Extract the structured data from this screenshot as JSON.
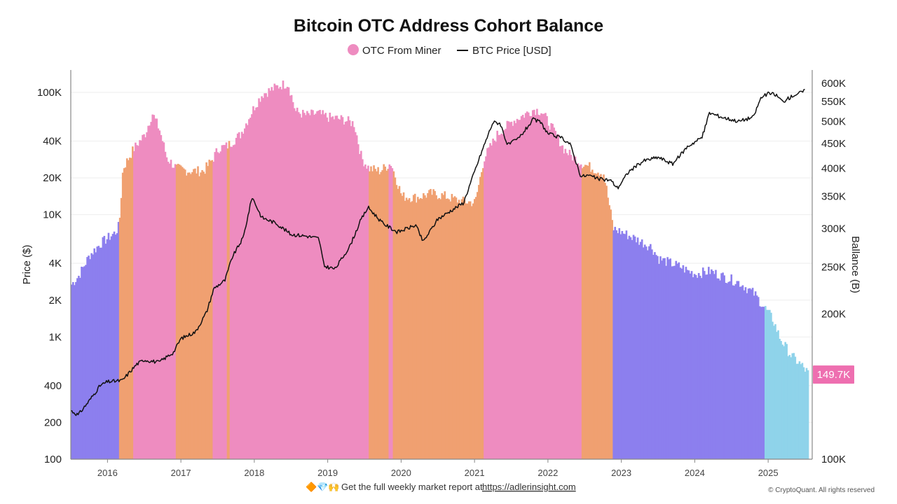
{
  "chart_data": {
    "type": "area",
    "title": "Bitcoin OTC Address Cohort Balance",
    "ylabel_left": "Price ($)",
    "ylabel_right": "Ballance (B)",
    "y_left_scale": "log",
    "y_left_range": [
      100,
      120000
    ],
    "y_left_ticks": [
      "100",
      "200",
      "400",
      "1K",
      "2K",
      "4K",
      "10K",
      "20K",
      "40K",
      "100K"
    ],
    "y_left_tick_values": [
      100,
      200,
      400,
      1000,
      2000,
      4000,
      10000,
      20000,
      40000,
      100000
    ],
    "y_right_scale": "log",
    "y_right_range": [
      100000,
      620000
    ],
    "y_right_ticks": [
      "100K",
      "200K",
      "250K",
      "300K",
      "350K",
      "400K",
      "450K",
      "500K",
      "550K",
      "600K"
    ],
    "y_right_tick_values": [
      100000,
      200000,
      250000,
      300000,
      350000,
      400000,
      450000,
      500000,
      550000,
      600000
    ],
    "x_range": [
      2015.5,
      2025.6
    ],
    "x_ticks": [
      "2016",
      "2017",
      "2018",
      "2019",
      "2020",
      "2021",
      "2022",
      "2023",
      "2024",
      "2025"
    ],
    "x_tick_values": [
      2016,
      2017,
      2018,
      2019,
      2020,
      2021,
      2022,
      2023,
      2024,
      2025
    ],
    "grid": "horizontal",
    "legend_position": "top-center",
    "legend": [
      {
        "label": "OTC From Miner",
        "marker": "circle",
        "color": "#ee8cc0"
      },
      {
        "label": "BTC Price [USD]",
        "marker": "line",
        "color": "#111111"
      }
    ],
    "balance_color_regimes": [
      {
        "from": 2015.5,
        "to": 2016.15,
        "color": "#8c7fee"
      },
      {
        "from": 2016.15,
        "to": 2016.35,
        "color": "#f0a071"
      },
      {
        "from": 2016.35,
        "to": 2016.93,
        "color": "#ee8cc0"
      },
      {
        "from": 2016.93,
        "to": 2017.43,
        "color": "#f0a071"
      },
      {
        "from": 2017.43,
        "to": 2017.62,
        "color": "#ee8cc0"
      },
      {
        "from": 2017.62,
        "to": 2017.66,
        "color": "#f0a071"
      },
      {
        "from": 2017.66,
        "to": 2019.55,
        "color": "#ee8cc0"
      },
      {
        "from": 2019.55,
        "to": 2019.82,
        "color": "#f0a071"
      },
      {
        "from": 2019.82,
        "to": 2019.88,
        "color": "#ee8cc0"
      },
      {
        "from": 2019.88,
        "to": 2021.12,
        "color": "#f0a071"
      },
      {
        "from": 2021.12,
        "to": 2022.45,
        "color": "#ee8cc0"
      },
      {
        "from": 2022.45,
        "to": 2022.88,
        "color": "#f0a071"
      },
      {
        "from": 2022.88,
        "to": 2024.95,
        "color": "#8c7fee"
      },
      {
        "from": 2024.95,
        "to": 2025.55,
        "color": "#8fd3ea"
      }
    ],
    "series": [
      {
        "name": "OTC From Miner",
        "axis": "right",
        "x": [
          2015.5,
          2015.6,
          2015.75,
          2015.9,
          2016.1,
          2016.15,
          2016.2,
          2016.35,
          2016.5,
          2016.6,
          2016.7,
          2016.8,
          2016.93,
          2017.1,
          2017.3,
          2017.43,
          2017.5,
          2017.62,
          2017.8,
          2018.0,
          2018.1,
          2018.2,
          2018.35,
          2018.45,
          2018.55,
          2018.7,
          2018.85,
          2019.0,
          2019.2,
          2019.35,
          2019.45,
          2019.55,
          2019.7,
          2019.85,
          2020.0,
          2020.2,
          2020.4,
          2020.6,
          2020.8,
          2021.0,
          2021.12,
          2021.3,
          2021.5,
          2021.7,
          2021.8,
          2021.9,
          2022.1,
          2022.2,
          2022.3,
          2022.45,
          2022.6,
          2022.75,
          2022.88,
          2023.0,
          2023.2,
          2023.4,
          2023.5,
          2023.65,
          2023.8,
          2023.9,
          2024.0,
          2024.2,
          2024.4,
          2024.6,
          2024.8,
          2024.95,
          2025.05,
          2025.15,
          2025.3,
          2025.45,
          2025.55
        ],
        "values": [
          230000,
          240000,
          265000,
          280000,
          295000,
          305000,
          400000,
          440000,
          470000,
          520000,
          480000,
          420000,
          400000,
          395000,
          395000,
          420000,
          440000,
          445000,
          470000,
          540000,
          570000,
          580000,
          595000,
          600000,
          525000,
          515000,
          520000,
          510000,
          505000,
          495000,
          420000,
          400000,
          395000,
          410000,
          350000,
          348000,
          355000,
          350000,
          342000,
          340000,
          420000,
          470000,
          500000,
          520000,
          530000,
          525000,
          470000,
          440000,
          425000,
          410000,
          400000,
          390000,
          300000,
          295000,
          285000,
          275000,
          260000,
          255000,
          250000,
          245000,
          242000,
          245000,
          238000,
          232000,
          220000,
          205000,
          195000,
          178000,
          164000,
          156000,
          149700
        ]
      },
      {
        "name": "BTC Price [USD]",
        "axis": "left",
        "x": [
          2015.5,
          2015.6,
          2015.75,
          2015.9,
          2016.0,
          2016.2,
          2016.4,
          2016.5,
          2016.7,
          2016.9,
          2017.0,
          2017.2,
          2017.35,
          2017.45,
          2017.6,
          2017.7,
          2017.85,
          2017.97,
          2018.1,
          2018.3,
          2018.5,
          2018.7,
          2018.88,
          2018.95,
          2019.1,
          2019.3,
          2019.45,
          2019.55,
          2019.75,
          2019.95,
          2020.2,
          2020.3,
          2020.5,
          2020.7,
          2020.85,
          2020.95,
          2021.1,
          2021.25,
          2021.35,
          2021.45,
          2021.6,
          2021.8,
          2021.9,
          2022.0,
          2022.2,
          2022.3,
          2022.45,
          2022.55,
          2022.7,
          2022.85,
          2022.95,
          2023.1,
          2023.3,
          2023.5,
          2023.7,
          2023.9,
          2024.1,
          2024.2,
          2024.4,
          2024.6,
          2024.8,
          2024.9,
          2025.0,
          2025.1,
          2025.2,
          2025.35,
          2025.5
        ],
        "values": [
          250,
          230,
          300,
          400,
          430,
          440,
          600,
          650,
          620,
          750,
          970,
          1100,
          1600,
          2500,
          2900,
          4500,
          6500,
          14000,
          9500,
          8500,
          6900,
          6700,
          6400,
          3800,
          3600,
          5500,
          9000,
          11500,
          8500,
          7200,
          8200,
          6000,
          9200,
          11000,
          12500,
          18500,
          33000,
          57000,
          56000,
          37000,
          42000,
          60000,
          57000,
          46000,
          42000,
          38000,
          20500,
          21000,
          19500,
          19200,
          16500,
          22500,
          27500,
          29500,
          26000,
          36000,
          43000,
          68000,
          62000,
          58000,
          63000,
          90000,
          98000,
          96000,
          84000,
          95000,
          103000
        ]
      }
    ],
    "last_value_label": "149.7K",
    "last_value_color": "#ee6fb0"
  },
  "footer": {
    "emojis": "🔶💎🙌",
    "text": "Get the full weekly market report at ",
    "link": "https://adlerinsight.com"
  },
  "copyright": "© CryptoQuant. All rights reserved"
}
